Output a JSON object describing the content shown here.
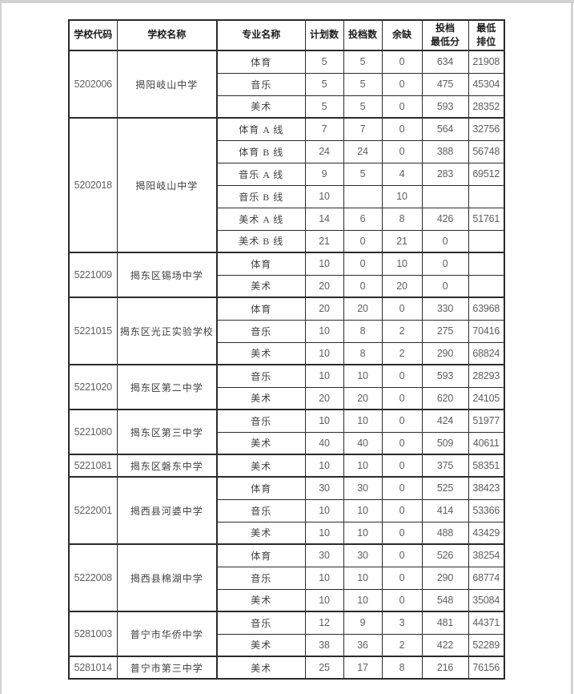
{
  "colors": {
    "table_border": "#2b2b2b",
    "header_text": "#1a1a1a",
    "school_text": "#3f3f3f",
    "number_text": "#5f5f5f",
    "page_edge": "#d2d2d2",
    "page_background": "#ffffff"
  },
  "table": {
    "columns": [
      {
        "key": "code",
        "lines": [
          "学校代码"
        ]
      },
      {
        "key": "school",
        "lines": [
          "学校名称"
        ]
      },
      {
        "key": "major",
        "lines": [
          "专业名称"
        ]
      },
      {
        "key": "plan",
        "lines": [
          "计划数"
        ]
      },
      {
        "key": "filed",
        "lines": [
          "投档数"
        ]
      },
      {
        "key": "gap",
        "lines": [
          "余缺"
        ]
      },
      {
        "key": "min_score",
        "lines": [
          "投档",
          "最低分"
        ]
      },
      {
        "key": "min_rank",
        "lines": [
          "最低",
          "排位"
        ]
      }
    ],
    "schools": [
      {
        "code": "5202006",
        "name": "揭阳岐山中学",
        "rows": [
          {
            "major": "体育",
            "plan": "5",
            "filed": "5",
            "gap": "0",
            "min_score": "634",
            "min_rank": "21908"
          },
          {
            "major": "音乐",
            "plan": "5",
            "filed": "5",
            "gap": "0",
            "min_score": "475",
            "min_rank": "45304"
          },
          {
            "major": "美术",
            "plan": "5",
            "filed": "5",
            "gap": "0",
            "min_score": "593",
            "min_rank": "28352"
          }
        ]
      },
      {
        "code": "5202018",
        "name": "揭阳岐山中学",
        "rows": [
          {
            "major": "体育 A 线",
            "plan": "7",
            "filed": "7",
            "gap": "0",
            "min_score": "564",
            "min_rank": "32756"
          },
          {
            "major": "体育 B 线",
            "plan": "24",
            "filed": "24",
            "gap": "0",
            "min_score": "388",
            "min_rank": "56748"
          },
          {
            "major": "音乐 A 线",
            "plan": "9",
            "filed": "5",
            "gap": "4",
            "min_score": "283",
            "min_rank": "69512"
          },
          {
            "major": "音乐 B 线",
            "plan": "10",
            "filed": "",
            "gap": "10",
            "min_score": "",
            "min_rank": ""
          },
          {
            "major": "美术 A 线",
            "plan": "14",
            "filed": "6",
            "gap": "8",
            "min_score": "426",
            "min_rank": "51761"
          },
          {
            "major": "美术 B 线",
            "plan": "21",
            "filed": "0",
            "gap": "21",
            "min_score": "0",
            "min_rank": ""
          }
        ]
      },
      {
        "code": "5221009",
        "name": "揭东区锡场中学",
        "rows": [
          {
            "major": "体育",
            "plan": "10",
            "filed": "0",
            "gap": "10",
            "min_score": "0",
            "min_rank": ""
          },
          {
            "major": "美术",
            "plan": "20",
            "filed": "0",
            "gap": "20",
            "min_score": "0",
            "min_rank": ""
          }
        ]
      },
      {
        "code": "5221015",
        "name": "揭东区光正实验学校",
        "rows": [
          {
            "major": "体育",
            "plan": "20",
            "filed": "20",
            "gap": "0",
            "min_score": "330",
            "min_rank": "63968"
          },
          {
            "major": "音乐",
            "plan": "10",
            "filed": "8",
            "gap": "2",
            "min_score": "275",
            "min_rank": "70416"
          },
          {
            "major": "美术",
            "plan": "10",
            "filed": "8",
            "gap": "2",
            "min_score": "290",
            "min_rank": "68824"
          }
        ]
      },
      {
        "code": "5221020",
        "name": "揭东区第二中学",
        "rows": [
          {
            "major": "音乐",
            "plan": "10",
            "filed": "10",
            "gap": "0",
            "min_score": "593",
            "min_rank": "28293"
          },
          {
            "major": "美术",
            "plan": "20",
            "filed": "20",
            "gap": "0",
            "min_score": "620",
            "min_rank": "24105"
          }
        ]
      },
      {
        "code": "5221080",
        "name": "揭东区第三中学",
        "rows": [
          {
            "major": "音乐",
            "plan": "10",
            "filed": "10",
            "gap": "0",
            "min_score": "424",
            "min_rank": "51977"
          },
          {
            "major": "美术",
            "plan": "40",
            "filed": "40",
            "gap": "0",
            "min_score": "509",
            "min_rank": "40611"
          }
        ]
      },
      {
        "code": "5221081",
        "name": "揭东区磐东中学",
        "rows": [
          {
            "major": "美术",
            "plan": "10",
            "filed": "10",
            "gap": "0",
            "min_score": "375",
            "min_rank": "58351"
          }
        ]
      },
      {
        "code": "5222001",
        "name": "揭西县河婆中学",
        "rows": [
          {
            "major": "体育",
            "plan": "30",
            "filed": "30",
            "gap": "0",
            "min_score": "525",
            "min_rank": "38423"
          },
          {
            "major": "音乐",
            "plan": "10",
            "filed": "10",
            "gap": "0",
            "min_score": "414",
            "min_rank": "53366"
          },
          {
            "major": "美术",
            "plan": "10",
            "filed": "10",
            "gap": "0",
            "min_score": "488",
            "min_rank": "43429"
          }
        ]
      },
      {
        "code": "5222008",
        "name": "揭西县棉湖中学",
        "rows": [
          {
            "major": "体育",
            "plan": "30",
            "filed": "30",
            "gap": "0",
            "min_score": "526",
            "min_rank": "38254"
          },
          {
            "major": "音乐",
            "plan": "10",
            "filed": "10",
            "gap": "0",
            "min_score": "290",
            "min_rank": "68774"
          },
          {
            "major": "美术",
            "plan": "10",
            "filed": "10",
            "gap": "0",
            "min_score": "548",
            "min_rank": "35084"
          }
        ]
      },
      {
        "code": "5281003",
        "name": "普宁市华侨中学",
        "rows": [
          {
            "major": "音乐",
            "plan": "12",
            "filed": "9",
            "gap": "3",
            "min_score": "481",
            "min_rank": "44371"
          },
          {
            "major": "美术",
            "plan": "38",
            "filed": "36",
            "gap": "2",
            "min_score": "422",
            "min_rank": "52289"
          }
        ]
      },
      {
        "code": "5281014",
        "name": "普宁市第三中学",
        "rows": [
          {
            "major": "美术",
            "plan": "25",
            "filed": "17",
            "gap": "8",
            "min_score": "216",
            "min_rank": "76156"
          }
        ]
      }
    ]
  }
}
